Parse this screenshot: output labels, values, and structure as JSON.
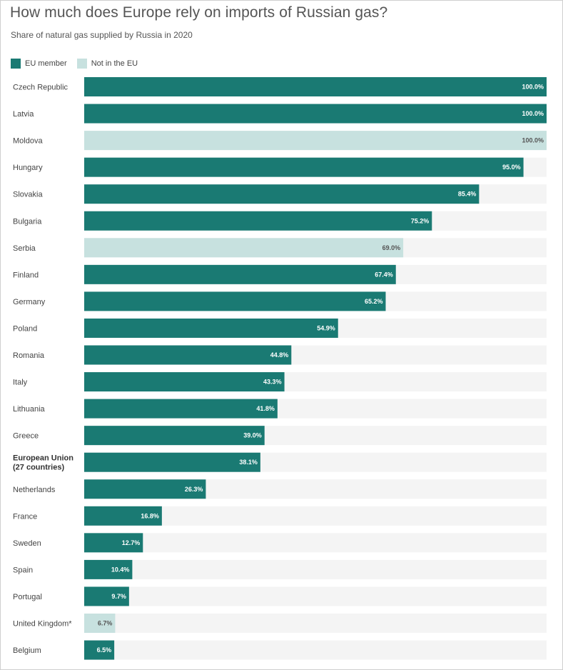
{
  "title": "How much does Europe rely on imports of Russian gas?",
  "subtitle": "Share of natural gas supplied by Russia in 2020",
  "colors": {
    "eu_member": "#1a7a73",
    "not_in_eu": "#c7e1df",
    "track": "#f4f4f4",
    "label_on_dark": "#ffffff",
    "label_on_light": "#555555"
  },
  "legend": [
    {
      "name": "EU member",
      "key": "eu_member"
    },
    {
      "name": "Not in the EU",
      "key": "not_in_eu"
    }
  ],
  "chart_data": {
    "type": "bar",
    "orientation": "horizontal",
    "title": "How much does Europe rely on imports of Russian gas?",
    "subtitle": "Share of natural gas supplied by Russia in 2020",
    "xlim": [
      0,
      100
    ],
    "grid": false,
    "legend_position": "top-left",
    "categories": [
      {
        "label": [
          "Czech Republic"
        ],
        "value": 100.0,
        "value_label": "100.0%",
        "group": "eu_member",
        "bold": false
      },
      {
        "label": [
          "Latvia"
        ],
        "value": 100.0,
        "value_label": "100.0%",
        "group": "eu_member",
        "bold": false
      },
      {
        "label": [
          "Moldova"
        ],
        "value": 100.0,
        "value_label": "100.0%",
        "group": "not_in_eu",
        "bold": false
      },
      {
        "label": [
          "Hungary"
        ],
        "value": 95.0,
        "value_label": "95.0%",
        "group": "eu_member",
        "bold": false
      },
      {
        "label": [
          "Slovakia"
        ],
        "value": 85.4,
        "value_label": "85.4%",
        "group": "eu_member",
        "bold": false
      },
      {
        "label": [
          "Bulgaria"
        ],
        "value": 75.2,
        "value_label": "75.2%",
        "group": "eu_member",
        "bold": false
      },
      {
        "label": [
          "Serbia"
        ],
        "value": 69.0,
        "value_label": "69.0%",
        "group": "not_in_eu",
        "bold": false
      },
      {
        "label": [
          "Finland"
        ],
        "value": 67.4,
        "value_label": "67.4%",
        "group": "eu_member",
        "bold": false
      },
      {
        "label": [
          "Germany"
        ],
        "value": 65.2,
        "value_label": "65.2%",
        "group": "eu_member",
        "bold": false
      },
      {
        "label": [
          "Poland"
        ],
        "value": 54.9,
        "value_label": "54.9%",
        "group": "eu_member",
        "bold": false
      },
      {
        "label": [
          "Romania"
        ],
        "value": 44.8,
        "value_label": "44.8%",
        "group": "eu_member",
        "bold": false
      },
      {
        "label": [
          "Italy"
        ],
        "value": 43.3,
        "value_label": "43.3%",
        "group": "eu_member",
        "bold": false
      },
      {
        "label": [
          "Lithuania"
        ],
        "value": 41.8,
        "value_label": "41.8%",
        "group": "eu_member",
        "bold": false
      },
      {
        "label": [
          "Greece"
        ],
        "value": 39.0,
        "value_label": "39.0%",
        "group": "eu_member",
        "bold": false
      },
      {
        "label": [
          "European Union",
          "(27 countries)"
        ],
        "value": 38.1,
        "value_label": "38.1%",
        "group": "eu_member",
        "bold": true
      },
      {
        "label": [
          "Netherlands"
        ],
        "value": 26.3,
        "value_label": "26.3%",
        "group": "eu_member",
        "bold": false
      },
      {
        "label": [
          "France"
        ],
        "value": 16.8,
        "value_label": "16.8%",
        "group": "eu_member",
        "bold": false
      },
      {
        "label": [
          "Sweden"
        ],
        "value": 12.7,
        "value_label": "12.7%",
        "group": "eu_member",
        "bold": false
      },
      {
        "label": [
          "Spain"
        ],
        "value": 10.4,
        "value_label": "10.4%",
        "group": "eu_member",
        "bold": false
      },
      {
        "label": [
          "Portugal"
        ],
        "value": 9.7,
        "value_label": "9.7%",
        "group": "eu_member",
        "bold": false
      },
      {
        "label": [
          "United Kingdom*"
        ],
        "value": 6.7,
        "value_label": "6.7%",
        "group": "not_in_eu",
        "bold": false
      },
      {
        "label": [
          "Belgium"
        ],
        "value": 6.5,
        "value_label": "6.5%",
        "group": "eu_member",
        "bold": false
      }
    ]
  }
}
